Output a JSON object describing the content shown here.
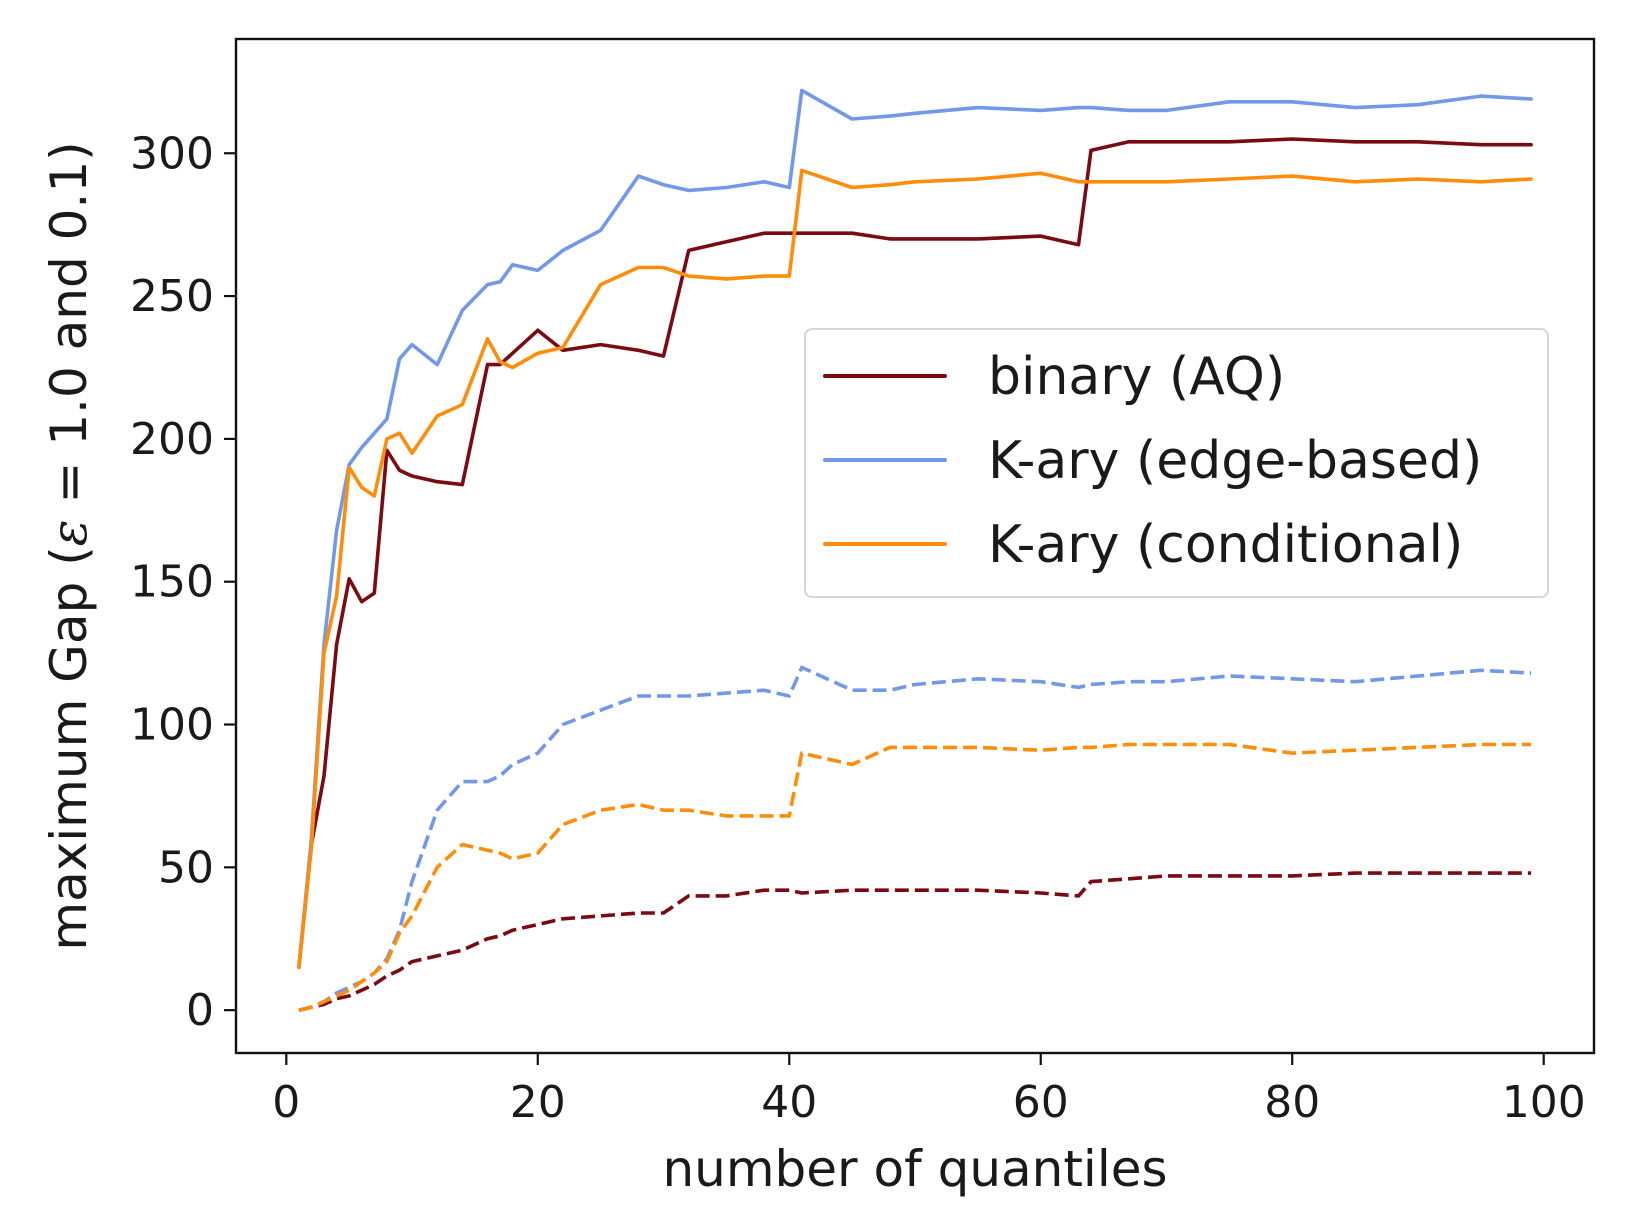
{
  "chart_data": {
    "type": "line",
    "title": "",
    "xlabel": "number of quantiles",
    "ylabel_parts": [
      "maximum Gap (",
      "ε",
      " = 1.0 and 0.1)"
    ],
    "xlim": [
      -4,
      104
    ],
    "ylim": [
      -15,
      340
    ],
    "xticks": [
      0,
      20,
      40,
      60,
      80,
      100
    ],
    "yticks": [
      0,
      50,
      100,
      150,
      200,
      250,
      300
    ],
    "grid": false,
    "legend_position": "center-right",
    "legend": [
      {
        "label": "binary (AQ)",
        "color": "#7b0b12"
      },
      {
        "label": "K-ary (edge-based)",
        "color": "#7199e8"
      },
      {
        "label": "K-ary (conditional)",
        "color": "#ff8c0a"
      }
    ],
    "x": [
      1,
      2,
      3,
      4,
      5,
      6,
      7,
      8,
      9,
      10,
      12,
      14,
      16,
      17,
      18,
      20,
      22,
      25,
      28,
      30,
      32,
      35,
      38,
      40,
      41,
      45,
      48,
      50,
      55,
      60,
      63,
      64,
      67,
      70,
      75,
      80,
      85,
      90,
      95,
      99
    ],
    "series": [
      {
        "name": "binary (AQ)",
        "epsilon": "1.0",
        "style": "solid",
        "color": "#7b0b12",
        "values": [
          15,
          58,
          82,
          128,
          151,
          143,
          146,
          196,
          189,
          187,
          185,
          184,
          226,
          226,
          230,
          238,
          231,
          233,
          231,
          229,
          266,
          269,
          272,
          272,
          272,
          272,
          270,
          270,
          270,
          271,
          268,
          301,
          304,
          304,
          304,
          305,
          304,
          304,
          303,
          303
        ]
      },
      {
        "name": "K-ary (edge-based)",
        "epsilon": "1.0",
        "style": "solid",
        "color": "#7199e8",
        "values": [
          15,
          60,
          128,
          168,
          191,
          197,
          202,
          207,
          228,
          233,
          226,
          245,
          254,
          255,
          261,
          259,
          266,
          273,
          292,
          289,
          287,
          288,
          290,
          288,
          322,
          312,
          313,
          314,
          316,
          315,
          316,
          316,
          315,
          315,
          318,
          318,
          316,
          317,
          320,
          319
        ]
      },
      {
        "name": "K-ary (conditional)",
        "epsilon": "1.0",
        "style": "solid",
        "color": "#ff8c0a",
        "values": [
          15,
          57,
          125,
          145,
          190,
          183,
          180,
          200,
          202,
          195,
          208,
          212,
          235,
          227,
          225,
          230,
          232,
          254,
          260,
          260,
          257,
          256,
          257,
          257,
          294,
          288,
          289,
          290,
          291,
          293,
          290,
          290,
          290,
          290,
          291,
          292,
          290,
          291,
          290,
          291
        ]
      },
      {
        "name": "binary (AQ)",
        "epsilon": "0.1",
        "style": "dashed",
        "color": "#7b0b12",
        "values": [
          0,
          1,
          2,
          4,
          5,
          7,
          9,
          12,
          14,
          17,
          19,
          21,
          25,
          26,
          28,
          30,
          32,
          33,
          34,
          34,
          40,
          40,
          42,
          42,
          41,
          42,
          42,
          42,
          42,
          41,
          40,
          45,
          46,
          47,
          47,
          47,
          48,
          48,
          48,
          48
        ]
      },
      {
        "name": "K-ary (edge-based)",
        "epsilon": "0.1",
        "style": "dashed",
        "color": "#7199e8",
        "values": [
          0,
          1,
          3,
          6,
          8,
          10,
          13,
          18,
          28,
          45,
          70,
          80,
          80,
          82,
          86,
          90,
          100,
          105,
          110,
          110,
          110,
          111,
          112,
          110,
          120,
          112,
          112,
          114,
          116,
          115,
          113,
          114,
          115,
          115,
          117,
          116,
          115,
          117,
          119,
          118
        ]
      },
      {
        "name": "K-ary (conditional)",
        "epsilon": "0.1",
        "style": "dashed",
        "color": "#ff8c0a",
        "values": [
          0,
          1,
          3,
          5,
          7,
          10,
          13,
          17,
          27,
          33,
          50,
          58,
          56,
          55,
          53,
          55,
          65,
          70,
          72,
          70,
          70,
          68,
          68,
          68,
          90,
          86,
          92,
          92,
          92,
          91,
          92,
          92,
          93,
          93,
          93,
          90,
          91,
          92,
          93,
          93
        ]
      }
    ]
  }
}
